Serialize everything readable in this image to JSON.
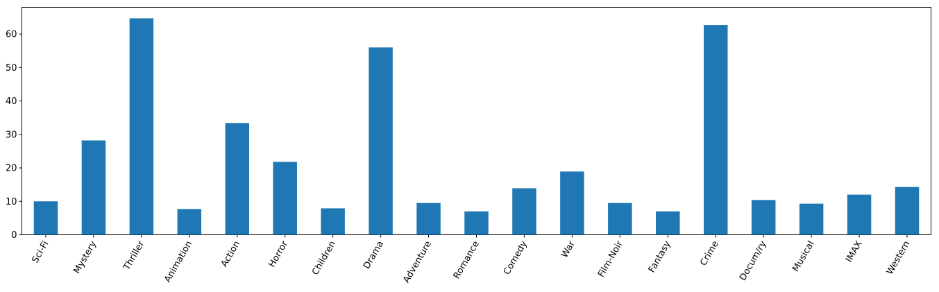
{
  "chart_data": {
    "type": "bar",
    "categories": [
      "Sci-Fi",
      "Mystery",
      "Thriller",
      "Animation",
      "Action",
      "Horror",
      "Children",
      "Drama",
      "Adventure",
      "Romance",
      "Comedy",
      "War",
      "Film-Noir",
      "Fantasy",
      "Crime",
      "Docum/ry",
      "Musical",
      "IMAX",
      "Western"
    ],
    "values": [
      10.0,
      28.2,
      64.7,
      7.7,
      33.4,
      21.8,
      7.9,
      56.0,
      9.5,
      7.0,
      13.9,
      18.9,
      9.5,
      7.0,
      62.7,
      10.4,
      9.3,
      12.0,
      14.3
    ],
    "color": "#1f77b4",
    "ylim": [
      0,
      68
    ],
    "yticks": [
      0,
      10,
      20,
      30,
      40,
      50,
      60
    ],
    "grid": false
  }
}
